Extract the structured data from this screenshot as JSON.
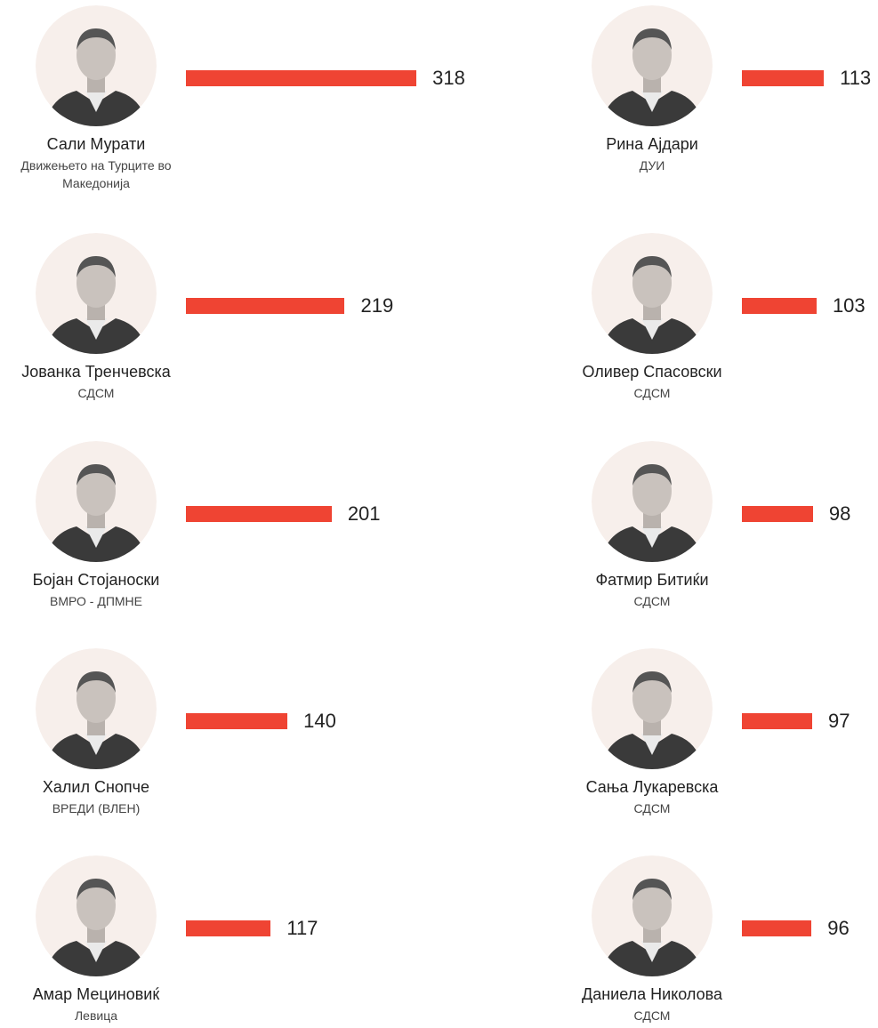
{
  "chart_data": {
    "type": "bar",
    "color": "#ef4433",
    "categories": [
      "Сали Мурати",
      "Јованка Тренчевска",
      "Бојан Стојаноски",
      "Халил Снопче",
      "Амар Мециновиќ",
      "Рина Ајдари",
      "Оливер Спасовски",
      "Фатмир Битиќи",
      "Сања Лукаревска",
      "Даниела Николова"
    ],
    "parties": [
      "Движењето на Турците во Македонија",
      "СДСМ",
      "ВМРО - ДПМНЕ",
      "ВРЕДИ (ВЛЕН)",
      "Левица",
      "ДУИ",
      "СДСМ",
      "СДСМ",
      "СДСМ",
      "СДСМ"
    ],
    "values": [
      318,
      219,
      201,
      140,
      117,
      113,
      103,
      98,
      97,
      96
    ]
  }
}
